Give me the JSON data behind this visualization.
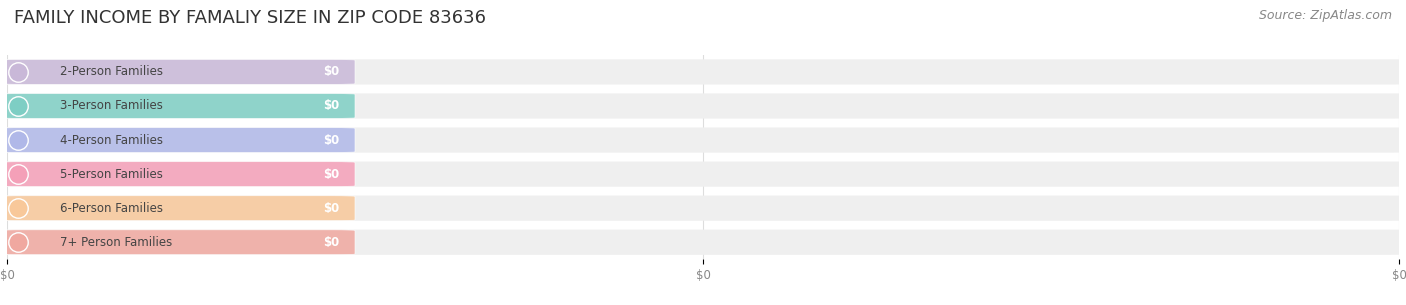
{
  "title": "FAMILY INCOME BY FAMALIY SIZE IN ZIP CODE 83636",
  "source": "Source: ZipAtlas.com",
  "categories": [
    "2-Person Families",
    "3-Person Families",
    "4-Person Families",
    "5-Person Families",
    "6-Person Families",
    "7+ Person Families"
  ],
  "values": [
    0,
    0,
    0,
    0,
    0,
    0
  ],
  "bar_colors": [
    "#c9b8d8",
    "#7ecec4",
    "#b0b8e8",
    "#f4a0b8",
    "#f8c89a",
    "#f0a8a0"
  ],
  "value_label": "$0",
  "xlim": [
    0,
    1
  ],
  "background_color": "#ffffff",
  "title_fontsize": 13,
  "source_fontsize": 9,
  "bar_label_fontsize": 8.5,
  "value_fontsize": 8.5,
  "tick_fontsize": 8.5,
  "grid_color": "#dddddd"
}
